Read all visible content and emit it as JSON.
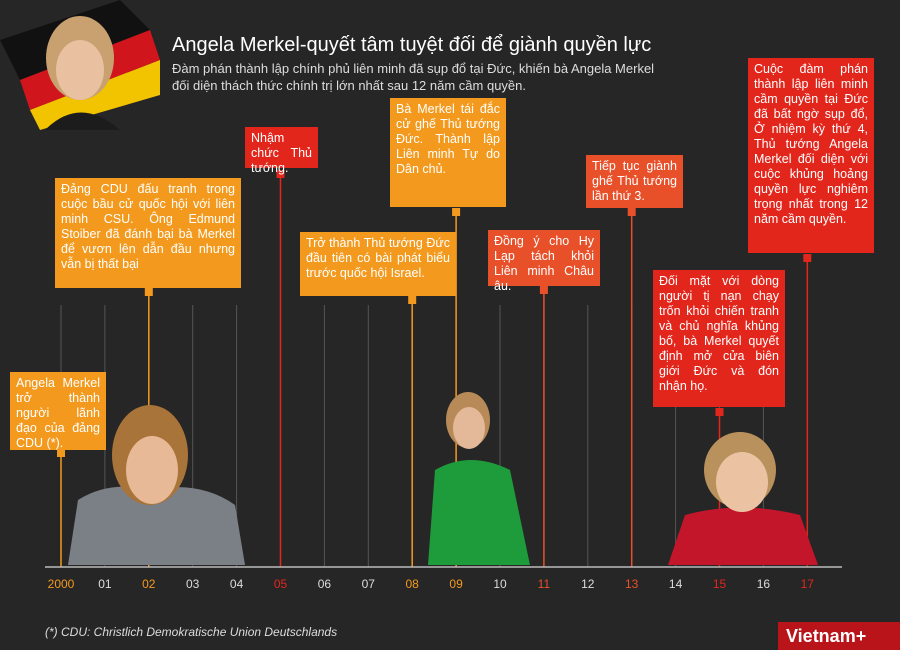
{
  "header": {
    "title": "Angela Merkel-quyết tâm tuyệt đối để giành quyền lực",
    "subtitle": "Đàm phán thành lập chính phủ liên minh đã sụp đổ tại Đức, khiến bà Angela Merkel đối diện thách thức chính trị lớn nhất sau 12 năm cầm quyền."
  },
  "years": [
    "2000",
    "01",
    "02",
    "03",
    "04",
    "05",
    "06",
    "07",
    "08",
    "09",
    "10",
    "11",
    "12",
    "13",
    "14",
    "15",
    "16",
    "17"
  ],
  "events": [
    {
      "year": "2000",
      "color": "#f39a1e",
      "text": "Angela Merkel trở thành người lãnh đạo của đảng CDU (*)."
    },
    {
      "year": "02",
      "color": "#f39a1e",
      "text": "Đảng CDU đấu tranh trong cuộc bầu cử quốc hội với liên minh CSU. Ông Edmund Stoiber đã đánh bại bà Merkel để vươn lên dẫn đầu nhưng vẫn bị thất bại"
    },
    {
      "year": "05",
      "color": "#e2261c",
      "text": "Nhậm chức Thủ tướng."
    },
    {
      "year": "08",
      "color": "#f39a1e",
      "text": "Trở thành Thủ tướng Đức đầu tiên có bài phát biểu trước quốc hội Israel."
    },
    {
      "year": "09",
      "color": "#f39a1e",
      "text": "Bà Merkel tái đắc cử ghế Thủ tướng Đức. Thành lập Liên minh Tự do Dân chủ."
    },
    {
      "year": "11",
      "color": "#e8502a",
      "text": "Đồng ý cho Hy Lạp tách khỏi Liên minh Châu âu."
    },
    {
      "year": "13",
      "color": "#e8502a",
      "text": "Tiếp tục giành ghế Thủ tướng lần thứ 3."
    },
    {
      "year": "15",
      "color": "#e2261c",
      "text": "Đối mặt với dòng người tị nạn chạy trốn khỏi chiến tranh và chủ nghĩa khủng bố, bà Merkel quyết định mở cửa biên giới Đức và đón nhận họ."
    },
    {
      "year": "17",
      "color": "#e2261c",
      "text": "Cuộc đàm phán thành lập liên minh cầm quyền tại Đức đã bất ngờ sụp đổ, Ở nhiệm kỳ thứ 4, Thủ tướng Angela Merkel đối diện với cuộc khủng hoảng quyền lực nghiêm trọng nhất trong 12 năm cầm quyền."
    }
  ],
  "footnote": "(*) CDU: Christlich Demokratische Union Deutschlands",
  "logo": "Vietnam+"
}
